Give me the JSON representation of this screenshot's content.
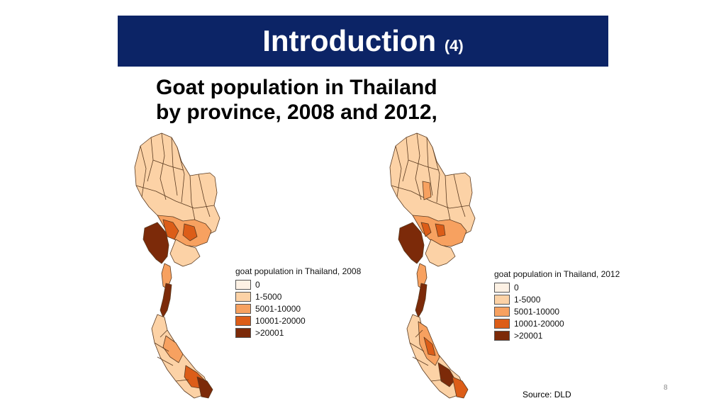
{
  "slide": {
    "title": "Introduction",
    "title_number": "(4)",
    "subtitle_line1": "Goat population in Thailand",
    "subtitle_line2": "by province, 2008 and 2012,",
    "source": "Source: DLD",
    "page_number": "8"
  },
  "colors": {
    "banner": "#0c2466",
    "class_0": "#fdf1e4",
    "class_1_5000": "#fcd2a6",
    "class_5001_10000": "#f7a160",
    "class_10001_20000": "#dc5d18",
    "class_gt_20001": "#7c2a09"
  },
  "maps": [
    {
      "legend_title": "goat population in Thailand, 2008",
      "legend": [
        {
          "label": "0",
          "color": "#fdf1e4"
        },
        {
          "label": "1-5000",
          "color": "#fcd2a6"
        },
        {
          "label": "5001-10000",
          "color": "#f7a160"
        },
        {
          "label": "10001-20000",
          "color": "#dc5d18"
        },
        {
          "label": ">20001",
          "color": "#7c2a09"
        }
      ]
    },
    {
      "legend_title": "goat population in Thailand, 2012",
      "legend": [
        {
          "label": "0",
          "color": "#fdf1e4"
        },
        {
          "label": "1-5000",
          "color": "#fcd2a6"
        },
        {
          "label": "5001-10000",
          "color": "#f7a160"
        },
        {
          "label": "10001-20000",
          "color": "#dc5d18"
        },
        {
          "label": ">20001",
          "color": "#7c2a09"
        }
      ]
    }
  ]
}
